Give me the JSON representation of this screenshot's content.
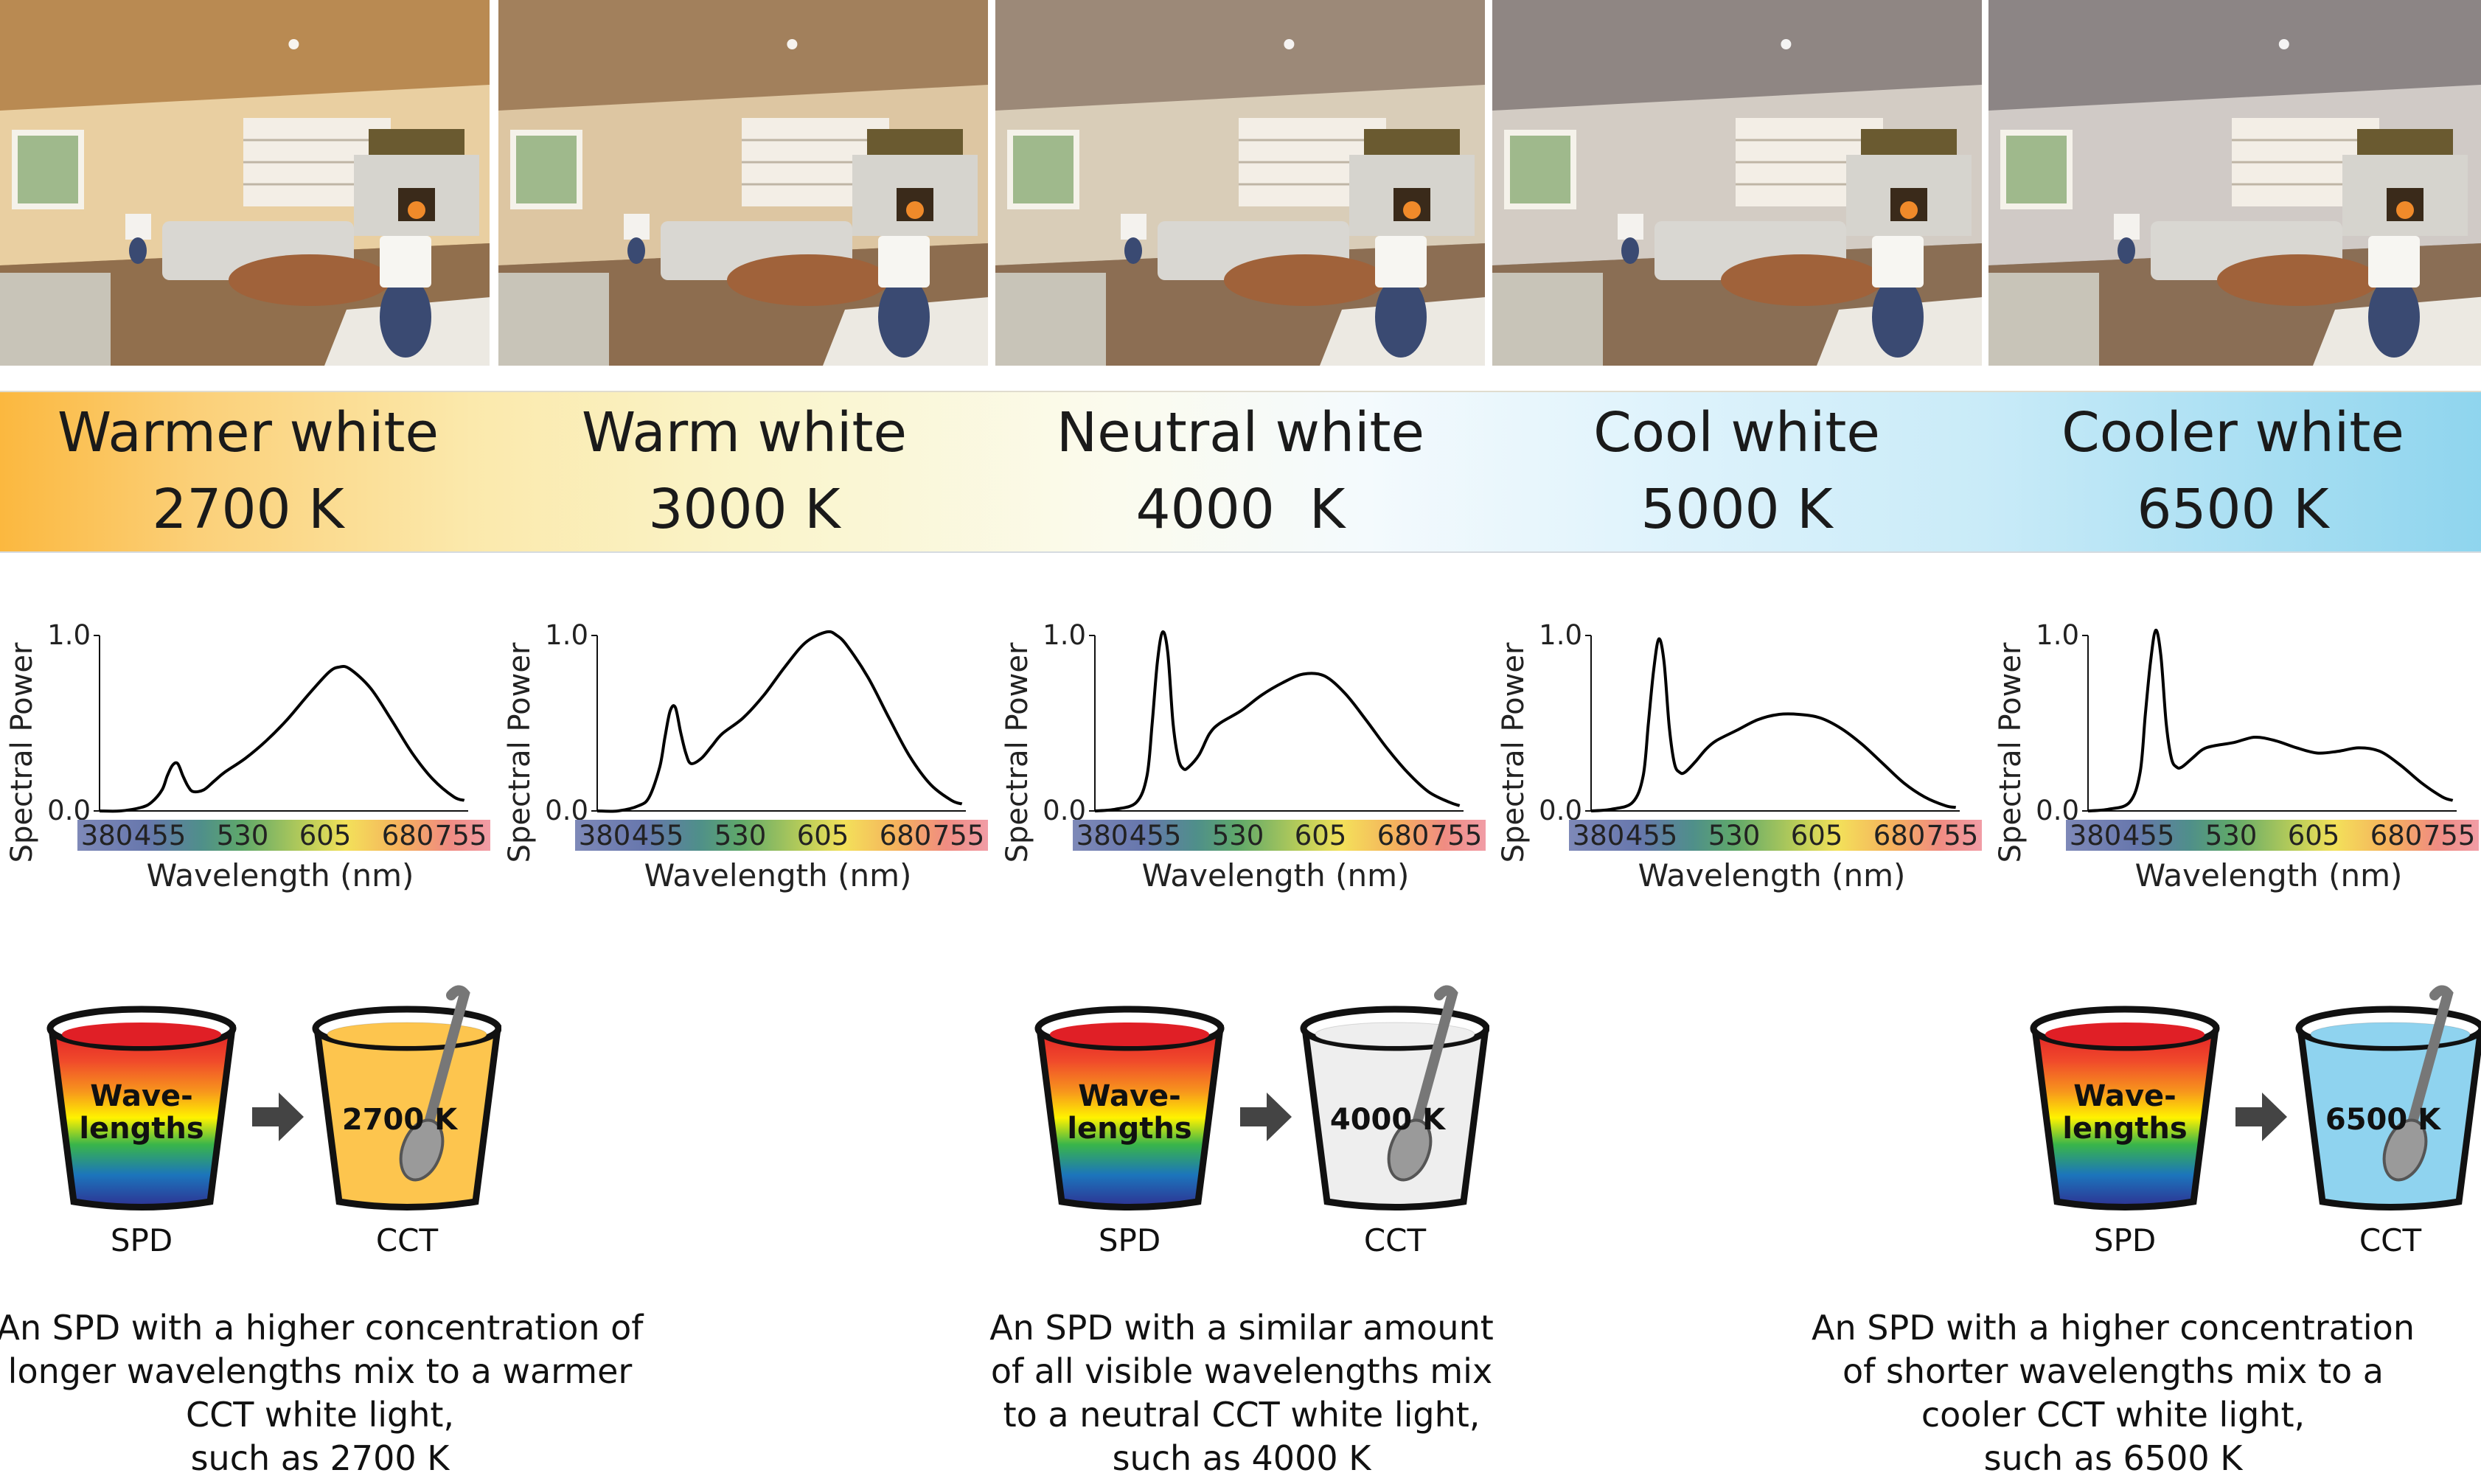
{
  "photos": [
    {
      "name": "warmer-white",
      "tint": "#b98a52",
      "wall": "#e9cfa1"
    },
    {
      "name": "warm-white",
      "tint": "#a2805c",
      "wall": "#ddc6a2"
    },
    {
      "name": "neutral-white",
      "tint": "#9c8978",
      "wall": "#d9cdb8"
    },
    {
      "name": "cool-white",
      "tint": "#8f8683",
      "wall": "#d3ccc4"
    },
    {
      "name": "cooler-white",
      "tint": "#8c8585",
      "wall": "#d0cac6"
    }
  ],
  "band": [
    {
      "name": "Warmer white",
      "kelvin": "2700 K"
    },
    {
      "name": "Warm white",
      "kelvin": "3000 K"
    },
    {
      "name": "Neutral white",
      "kelvin": "4000  K"
    },
    {
      "name": "Cool white",
      "kelvin": "5000 K"
    },
    {
      "name": "Cooler white",
      "kelvin": "6500 K"
    }
  ],
  "chart_data": [
    {
      "type": "line",
      "title": "",
      "xlabel": "Wavelength (nm)",
      "ylabel": "Spectral Power",
      "xticks": [
        "380",
        "455",
        "530",
        "605",
        "680",
        "755"
      ],
      "yticks": [
        "0.0",
        "1.0"
      ],
      "xlim": [
        380,
        755
      ],
      "ylim": [
        0,
        1
      ],
      "series": [
        {
          "x": [
            380,
            400,
            420,
            430,
            440,
            445,
            450,
            455,
            460,
            465,
            470,
            480,
            490,
            500,
            520,
            540,
            560,
            580,
            600,
            610,
            620,
            640,
            660,
            680,
            700,
            720,
            730
          ],
          "y": [
            0.0,
            0.0,
            0.02,
            0.05,
            0.12,
            0.2,
            0.26,
            0.27,
            0.2,
            0.14,
            0.11,
            0.12,
            0.17,
            0.22,
            0.3,
            0.4,
            0.52,
            0.66,
            0.79,
            0.82,
            0.81,
            0.7,
            0.52,
            0.33,
            0.18,
            0.08,
            0.06
          ]
        }
      ]
    },
    {
      "type": "line",
      "title": "",
      "xlabel": "Wavelength (nm)",
      "ylabel": "Spectral Power",
      "xticks": [
        "380",
        "455",
        "530",
        "605",
        "680",
        "755"
      ],
      "yticks": [
        "0.0",
        "1.0"
      ],
      "xlim": [
        380,
        755
      ],
      "ylim": [
        0,
        1
      ],
      "series": [
        {
          "x": [
            380,
            400,
            420,
            430,
            440,
            445,
            450,
            455,
            460,
            465,
            470,
            480,
            490,
            500,
            520,
            540,
            560,
            580,
            600,
            610,
            620,
            640,
            660,
            680,
            700,
            720,
            730
          ],
          "y": [
            0.0,
            0.0,
            0.03,
            0.08,
            0.25,
            0.42,
            0.57,
            0.59,
            0.45,
            0.33,
            0.27,
            0.3,
            0.37,
            0.44,
            0.53,
            0.66,
            0.82,
            0.96,
            1.02,
            1.0,
            0.94,
            0.76,
            0.53,
            0.31,
            0.15,
            0.06,
            0.04
          ]
        }
      ]
    },
    {
      "type": "line",
      "title": "",
      "xlabel": "Wavelength (nm)",
      "ylabel": "Spectral Power",
      "xticks": [
        "380",
        "455",
        "530",
        "605",
        "680",
        "755"
      ],
      "yticks": [
        "0.0",
        "1.0"
      ],
      "xlim": [
        380,
        755
      ],
      "ylim": [
        0,
        1
      ],
      "series": [
        {
          "x": [
            380,
            400,
            420,
            430,
            435,
            440,
            445,
            450,
            455,
            460,
            465,
            470,
            480,
            490,
            500,
            520,
            540,
            560,
            580,
            600,
            620,
            640,
            660,
            680,
            700,
            720,
            730
          ],
          "y": [
            0.0,
            0.01,
            0.05,
            0.2,
            0.5,
            0.85,
            1.02,
            0.9,
            0.5,
            0.3,
            0.24,
            0.25,
            0.32,
            0.44,
            0.5,
            0.57,
            0.66,
            0.73,
            0.78,
            0.77,
            0.67,
            0.52,
            0.36,
            0.22,
            0.11,
            0.05,
            0.03
          ]
        }
      ]
    },
    {
      "type": "line",
      "title": "",
      "xlabel": "Wavelength (nm)",
      "ylabel": "Spectral Power",
      "xticks": [
        "380",
        "455",
        "530",
        "605",
        "680",
        "755"
      ],
      "yticks": [
        "0.0",
        "1.0"
      ],
      "xlim": [
        380,
        755
      ],
      "ylim": [
        0,
        1
      ],
      "series": [
        {
          "x": [
            380,
            400,
            420,
            430,
            435,
            440,
            445,
            450,
            455,
            460,
            465,
            470,
            480,
            490,
            500,
            520,
            540,
            560,
            580,
            600,
            620,
            640,
            660,
            680,
            700,
            720,
            730
          ],
          "y": [
            0.0,
            0.01,
            0.05,
            0.2,
            0.5,
            0.8,
            0.98,
            0.85,
            0.48,
            0.27,
            0.22,
            0.22,
            0.28,
            0.35,
            0.4,
            0.46,
            0.52,
            0.55,
            0.55,
            0.53,
            0.47,
            0.38,
            0.27,
            0.16,
            0.08,
            0.03,
            0.02
          ]
        }
      ]
    },
    {
      "type": "line",
      "title": "",
      "xlabel": "Wavelength (nm)",
      "ylabel": "Spectral Power",
      "xticks": [
        "380",
        "455",
        "530",
        "605",
        "680",
        "755"
      ],
      "yticks": [
        "0.0",
        "1.0"
      ],
      "xlim": [
        380,
        755
      ],
      "ylim": [
        0,
        1
      ],
      "series": [
        {
          "x": [
            380,
            400,
            420,
            430,
            435,
            440,
            445,
            450,
            455,
            460,
            465,
            470,
            480,
            490,
            500,
            520,
            540,
            560,
            580,
            600,
            620,
            640,
            660,
            680,
            700,
            720,
            730
          ],
          "y": [
            0.0,
            0.01,
            0.05,
            0.22,
            0.55,
            0.85,
            1.03,
            0.88,
            0.5,
            0.3,
            0.25,
            0.25,
            0.3,
            0.35,
            0.37,
            0.39,
            0.42,
            0.4,
            0.36,
            0.33,
            0.34,
            0.36,
            0.34,
            0.26,
            0.16,
            0.08,
            0.06
          ]
        }
      ]
    }
  ],
  "cups": [
    {
      "spd_text_1": "Wave-",
      "spd_text_2": "lengths",
      "cct_text": "2700 K",
      "cct_color": "#fdc54e",
      "spd_label": "SPD",
      "cct_label": "CCT"
    },
    {
      "spd_text_1": "Wave-",
      "spd_text_2": "lengths",
      "cct_text": "4000 K",
      "cct_color": "#eeeeee",
      "spd_label": "SPD",
      "cct_label": "CCT"
    },
    {
      "spd_text_1": "Wave-",
      "spd_text_2": "lengths",
      "cct_text": "6500 K",
      "cct_color": "#8fd3ef",
      "spd_label": "SPD",
      "cct_label": "CCT"
    }
  ],
  "descriptions": [
    [
      "An SPD with a higher concentration of",
      "longer wavelengths mix to a warmer",
      "CCT white light,",
      "such as 2700 K"
    ],
    [
      "An SPD with a similar amount",
      "of all visible wavelengths mix",
      "to a neutral CCT white light,",
      "such as 4000 K"
    ],
    [
      "An SPD with a higher concentration",
      "of shorter wavelengths mix to a",
      "cooler CCT white light,",
      "such as 6500 K"
    ]
  ]
}
